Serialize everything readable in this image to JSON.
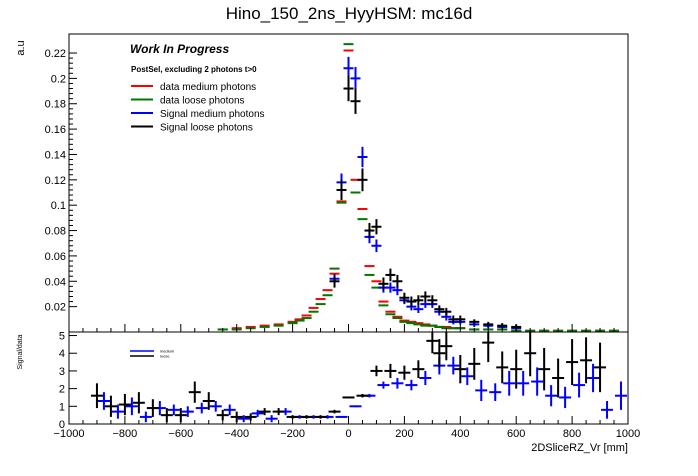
{
  "chart_data": [
    {
      "type": "scatter",
      "panel": "top",
      "title": "Hino_150_2ns_HyyHSM: mc16d",
      "ylabel": "a.u",
      "xlim": [
        -1000,
        1000
      ],
      "ylim": [
        0,
        0.235
      ],
      "y_ticks": [
        0.02,
        0.04,
        0.06,
        0.08,
        0.1,
        0.12,
        0.14,
        0.16,
        0.18,
        0.2,
        0.22
      ],
      "y_tick_labels": [
        "0.02",
        "0.04",
        "0.06",
        "0.08",
        "0.1",
        "0.12",
        "0.14",
        "0.16",
        "0.18",
        "0.2",
        "0.22"
      ],
      "annotation_title": "Work In Progress",
      "annotation_subtitle": "PostSel, excluding 2 photons t>0",
      "series": [
        {
          "name": "data medium photons",
          "color": "#ff0000",
          "style": "step",
          "x": [
            -450,
            -400,
            -350,
            -300,
            -250,
            -200,
            -175,
            -150,
            -125,
            -100,
            -75,
            -50,
            -25,
            0,
            25,
            50,
            75,
            100,
            125,
            150,
            175,
            200,
            225,
            250,
            275,
            300,
            325,
            350,
            375,
            400,
            450,
            500,
            550,
            600,
            650,
            700,
            750,
            800,
            850,
            900,
            950
          ],
          "values": [
            0.002,
            0.003,
            0.004,
            0.005,
            0.006,
            0.008,
            0.01,
            0.013,
            0.019,
            0.026,
            0.033,
            0.046,
            0.103,
            0.222,
            0.12,
            0.097,
            0.052,
            0.04,
            0.024,
            0.016,
            0.012,
            0.009,
            0.008,
            0.007,
            0.006,
            0.005,
            0.004,
            0.004,
            0.003,
            0.003,
            0.002,
            0.002,
            0.002,
            0.001,
            0.001,
            0.001,
            0.001,
            0.001,
            0.001,
            0.001,
            0.001
          ]
        },
        {
          "name": "data loose photons",
          "color": "#007700",
          "style": "step",
          "x": [
            -450,
            -400,
            -350,
            -300,
            -250,
            -200,
            -175,
            -150,
            -125,
            -100,
            -75,
            -50,
            -25,
            0,
            25,
            50,
            75,
            100,
            125,
            150,
            175,
            200,
            225,
            250,
            275,
            300,
            325,
            350,
            375,
            400,
            450,
            500,
            550,
            600,
            650,
            700,
            750,
            800,
            850,
            900,
            950
          ],
          "values": [
            0.002,
            0.002,
            0.003,
            0.004,
            0.005,
            0.007,
            0.009,
            0.011,
            0.016,
            0.022,
            0.029,
            0.05,
            0.102,
            0.227,
            0.11,
            0.089,
            0.045,
            0.035,
            0.021,
            0.014,
            0.011,
            0.008,
            0.007,
            0.006,
            0.005,
            0.005,
            0.004,
            0.003,
            0.003,
            0.003,
            0.002,
            0.002,
            0.002,
            0.001,
            0.001,
            0.001,
            0.001,
            0.001,
            0.001,
            0.001,
            0.001
          ]
        },
        {
          "name": "Signal medium photons",
          "color": "#0000ff",
          "style": "errorbar",
          "x": [
            -50,
            -25,
            0,
            25,
            50,
            75,
            100,
            125,
            150,
            175,
            200,
            225,
            250,
            275,
            300,
            325,
            350,
            375,
            400,
            450,
            500,
            550,
            600
          ],
          "values": [
            0.042,
            0.118,
            0.208,
            0.2,
            0.138,
            0.075,
            0.068,
            0.035,
            0.035,
            0.033,
            0.025,
            0.02,
            0.018,
            0.022,
            0.022,
            0.016,
            0.012,
            0.008,
            0.008,
            0.006,
            0.005,
            0.004,
            0.003
          ],
          "errors": [
            0.004,
            0.007,
            0.009,
            0.009,
            0.008,
            0.005,
            0.005,
            0.004,
            0.004,
            0.004,
            0.003,
            0.003,
            0.003,
            0.003,
            0.003,
            0.003,
            0.003,
            0.002,
            0.002,
            0.002,
            0.002,
            0.001,
            0.001
          ]
        },
        {
          "name": "Signal loose photons",
          "color": "#000000",
          "style": "errorbar",
          "x": [
            -50,
            -25,
            0,
            25,
            50,
            75,
            100,
            125,
            150,
            175,
            200,
            225,
            250,
            275,
            300,
            325,
            350,
            375,
            400,
            450,
            500,
            550,
            600
          ],
          "values": [
            0.04,
            0.112,
            0.192,
            0.182,
            0.12,
            0.08,
            0.083,
            0.038,
            0.045,
            0.04,
            0.027,
            0.024,
            0.025,
            0.028,
            0.025,
            0.018,
            0.016,
            0.01,
            0.01,
            0.008,
            0.006,
            0.005,
            0.004
          ],
          "errors": [
            0.005,
            0.008,
            0.01,
            0.01,
            0.009,
            0.006,
            0.006,
            0.005,
            0.005,
            0.005,
            0.004,
            0.004,
            0.004,
            0.004,
            0.004,
            0.003,
            0.003,
            0.003,
            0.003,
            0.002,
            0.002,
            0.002,
            0.002
          ]
        }
      ]
    },
    {
      "type": "scatter",
      "panel": "ratio",
      "xlabel": "2DSliceRZ_Vr [mm]",
      "ylabel": "Signal/data",
      "xlim": [
        -1000,
        1000
      ],
      "ylim": [
        0,
        5.2
      ],
      "x_ticks": [
        -1000,
        -800,
        -600,
        -400,
        -200,
        0,
        200,
        400,
        600,
        800,
        1000
      ],
      "x_tick_labels": [
        "−1000",
        "−800",
        "−600",
        "−400",
        "−200",
        "0",
        "200",
        "400",
        "600",
        "800",
        "1000"
      ],
      "y_ticks": [
        0,
        1,
        2,
        3,
        4,
        5
      ],
      "y_tick_labels": [
        "0",
        "1",
        "2",
        "3",
        "4",
        "5"
      ],
      "legend": [
        "medium",
        "loose"
      ],
      "series": [
        {
          "name": "medium",
          "color": "#0000ff",
          "x": [
            -875,
            -825,
            -775,
            -725,
            -675,
            -625,
            -575,
            -525,
            -475,
            -425,
            -375,
            -325,
            -275,
            -225,
            -175,
            -125,
            -75,
            -25,
            25,
            75,
            125,
            175,
            225,
            275,
            325,
            375,
            425,
            475,
            525,
            575,
            625,
            675,
            725,
            775,
            825,
            875,
            925,
            975
          ],
          "values": [
            1.3,
            0.7,
            1.0,
            0.4,
            0.9,
            0.8,
            0.7,
            0.9,
            1.0,
            0.8,
            0.3,
            0.6,
            0.3,
            0.7,
            0.4,
            0.4,
            0.4,
            0.4,
            1.0,
            1.6,
            2.2,
            2.3,
            2.2,
            2.6,
            3.3,
            3.3,
            2.7,
            1.9,
            1.8,
            2.3,
            2.3,
            2.4,
            1.6,
            1.5,
            2.2,
            2.6,
            0.8,
            1.6
          ],
          "errors": [
            0.5,
            0.4,
            0.5,
            0.3,
            0.4,
            0.3,
            0.3,
            0.3,
            0.3,
            0.3,
            0.2,
            0.2,
            0.2,
            0.2,
            0.1,
            0.1,
            0.1,
            0.05,
            0.05,
            0.1,
            0.2,
            0.3,
            0.3,
            0.4,
            0.5,
            0.5,
            0.5,
            0.6,
            0.5,
            0.7,
            0.7,
            0.8,
            0.6,
            0.6,
            0.7,
            0.8,
            0.5,
            0.8
          ]
        },
        {
          "name": "loose",
          "color": "#000000",
          "x": [
            -900,
            -850,
            -800,
            -750,
            -700,
            -650,
            -600,
            -550,
            -500,
            -450,
            -400,
            -350,
            -300,
            -250,
            -200,
            -150,
            -100,
            -50,
            0,
            50,
            100,
            150,
            200,
            250,
            300,
            325,
            350,
            400,
            450,
            500,
            550,
            600,
            650,
            700,
            750,
            800,
            850,
            900
          ],
          "values": [
            1.6,
            1.0,
            1.1,
            1.2,
            0.9,
            0.5,
            0.5,
            1.8,
            1.3,
            0.5,
            0.4,
            0.4,
            0.7,
            0.7,
            0.4,
            0.4,
            0.4,
            0.7,
            1.5,
            1.6,
            3.0,
            3.0,
            2.9,
            3.1,
            4.7,
            4.0,
            4.4,
            3.1,
            3.4,
            4.6,
            3.2,
            3.1,
            4.0,
            3.1,
            2.6,
            3.5,
            3.6,
            3.2
          ],
          "errors": [
            0.7,
            0.6,
            0.6,
            0.6,
            0.5,
            0.4,
            0.4,
            0.6,
            0.5,
            0.3,
            0.3,
            0.2,
            0.2,
            0.2,
            0.1,
            0.1,
            0.1,
            0.1,
            0.05,
            0.1,
            0.3,
            0.4,
            0.4,
            0.5,
            0.7,
            0.8,
            0.8,
            0.8,
            0.9,
            1.1,
            0.9,
            1.1,
            1.3,
            1.2,
            1.1,
            1.3,
            1.3,
            1.4
          ]
        }
      ]
    }
  ]
}
